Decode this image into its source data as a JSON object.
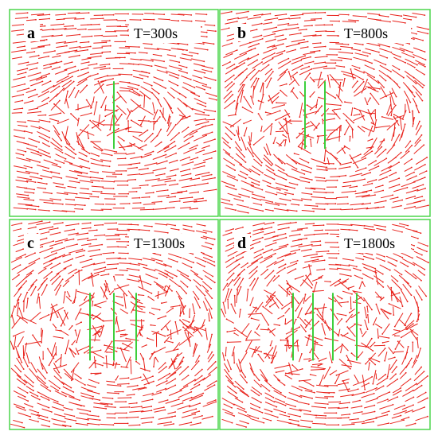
{
  "panels": [
    {
      "label": "a",
      "time": "T=300s"
    },
    {
      "label": "b",
      "time": "T=800s"
    },
    {
      "label": "c",
      "time": "T=1300s"
    },
    {
      "label": "d",
      "time": "T=1800s"
    }
  ]
}
